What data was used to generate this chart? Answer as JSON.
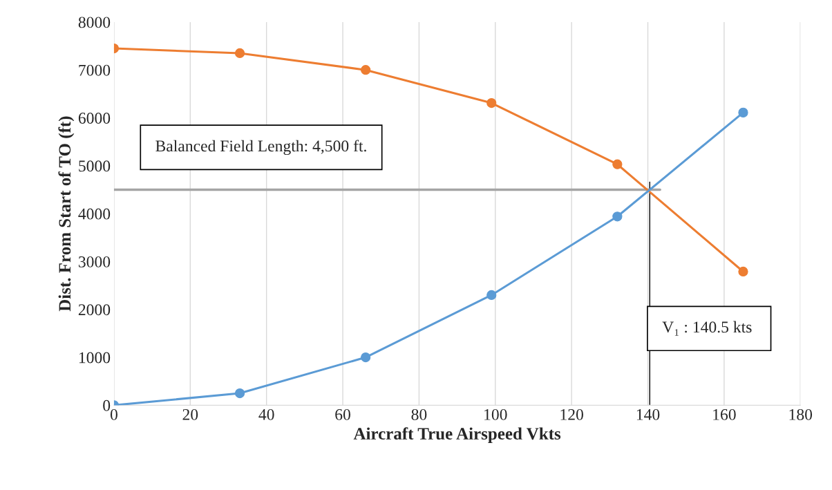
{
  "chart_data": {
    "type": "line",
    "xlabel": "Aircraft True Airspeed Vkts",
    "ylabel": "Dist. From Start of TO (ft)",
    "x": [
      0,
      33,
      66,
      99,
      132,
      165
    ],
    "series": [
      {
        "color": "#ed7d31",
        "values": [
          7450,
          7350,
          7000,
          6310,
          5030,
          2790
        ]
      },
      {
        "color": "#5b9bd5",
        "values": [
          0,
          250,
          1000,
          2300,
          3940,
          6110
        ]
      }
    ],
    "marker": "circle",
    "line_style": "solid",
    "xlim": [
      0,
      180
    ],
    "xticks": [
      0,
      20,
      40,
      60,
      80,
      100,
      120,
      140,
      160,
      180
    ],
    "ylim": [
      0,
      8000
    ],
    "yticks": [
      0,
      1000,
      2000,
      3000,
      4000,
      5000,
      6000,
      7000,
      8000
    ],
    "grid": "x",
    "ref_lines": [
      {
        "axis": "y",
        "value": 4500,
        "label": "Balanced Field Length: 4,500 ft.",
        "color": "#a5a5a5",
        "line_style": "solid"
      },
      {
        "axis": "x",
        "value": 140.5,
        "label": "V₁ : 140.5 kts",
        "color": "#000000",
        "line_style": "solid"
      }
    ]
  }
}
